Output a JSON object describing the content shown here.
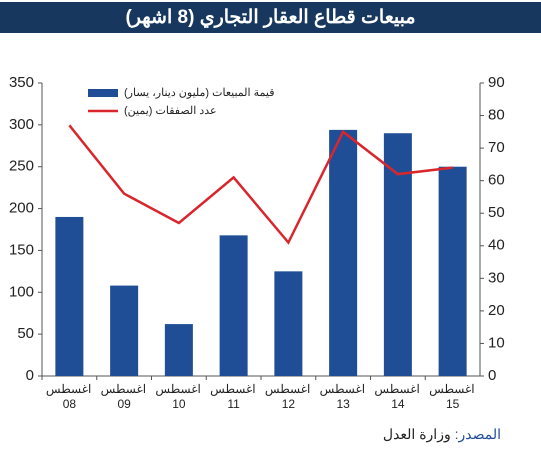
{
  "chart_data": {
    "type": "bar_line",
    "title": "مبيعات قطاع العقار التجاري (8 اشهر)",
    "categories": [
      "اغسطس 08",
      "اغسطس 09",
      "اغسطس 10",
      "اغسطس 11",
      "اغسطس 12",
      "اغسطس 13",
      "اغسطس 14",
      "اغسطس 15"
    ],
    "series": [
      {
        "name": "قيمة المبيعات (مليون دينار، يسار)",
        "type": "bar",
        "color": "#1f4e96",
        "values": [
          190,
          108,
          62,
          168,
          125,
          294,
          290,
          250
        ]
      },
      {
        "name": "عدد الصفقات (يمين)",
        "type": "line",
        "axis": "y2",
        "color": "#d9262c",
        "values": [
          77,
          56,
          47,
          61,
          41,
          75,
          62,
          64
        ]
      }
    ],
    "ylim": [
      0,
      350
    ],
    "yticks": [
      0,
      50,
      100,
      150,
      200,
      250,
      300,
      350
    ],
    "y2lim": [
      0,
      90
    ],
    "y2ticks": [
      0,
      10,
      20,
      30,
      40,
      50,
      60,
      70,
      80,
      90
    ],
    "source_label": "المصدر:",
    "source_text": "وزارة العدل"
  }
}
